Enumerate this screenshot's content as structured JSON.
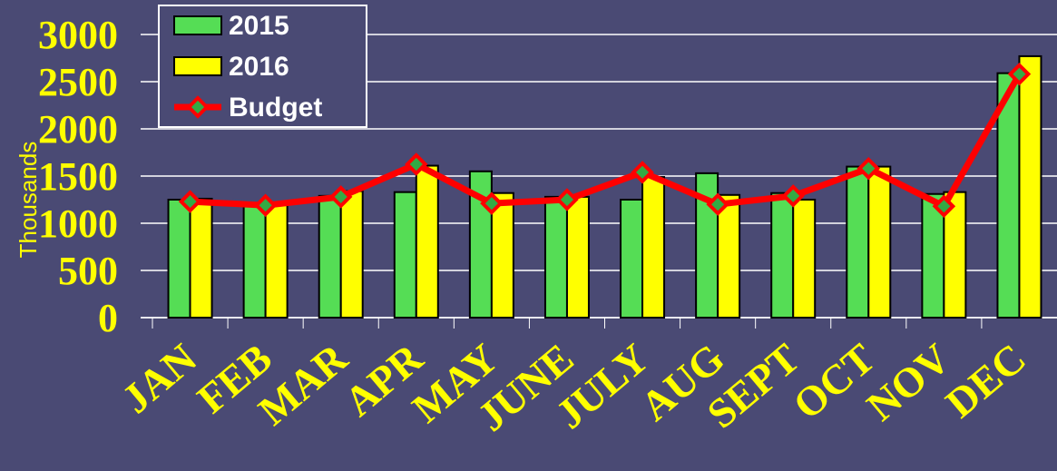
{
  "chart_data": {
    "type": "bar",
    "y_label": "Thousands",
    "categories": [
      "JAN",
      "FEB",
      "MAR",
      "APR",
      "MAY",
      "JUNE",
      "JULY",
      "AUG",
      "SEPT",
      "OCT",
      "NOV",
      "DEC"
    ],
    "series": [
      {
        "name": "2015",
        "type": "bar",
        "color": "#55dd55",
        "values": [
          1250,
          1200,
          1290,
          1330,
          1550,
          1280,
          1250,
          1530,
          1320,
          1600,
          1310,
          2590
        ]
      },
      {
        "name": "2016",
        "type": "bar",
        "color": "#ffff00",
        "values": [
          1260,
          1210,
          1340,
          1610,
          1320,
          1280,
          1490,
          1300,
          1250,
          1600,
          1330,
          2770
        ]
      },
      {
        "name": "Budget",
        "type": "line",
        "color": "#ff0000",
        "marker_color": "#33aa44",
        "values": [
          1230,
          1190,
          1280,
          1625,
          1210,
          1250,
          1540,
          1200,
          1290,
          1580,
          1180,
          2580
        ]
      }
    ],
    "ylim": [
      0,
      3000
    ],
    "yticks": [
      0,
      500,
      1000,
      1500,
      2000,
      2500,
      3000
    ],
    "grid": true,
    "legend": "top-left"
  }
}
